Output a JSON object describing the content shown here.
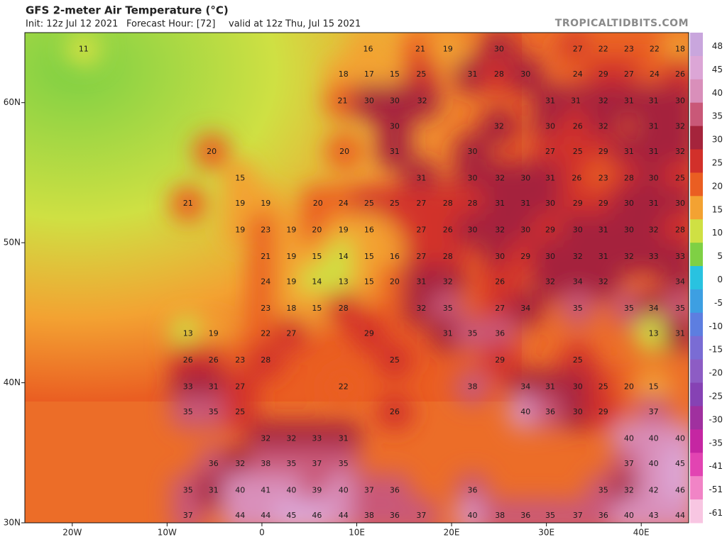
{
  "header": {
    "title": "GFS 2-meter Air Temperature (°C)",
    "init": "Init: 12z Jul 12 2021",
    "forecast_hour": "Forecast Hour: [72]",
    "valid": "valid at 12z Thu, Jul 15 2021",
    "site": "TROPICALTIDBITS.COM"
  },
  "chart_data": {
    "type": "map",
    "xlim": [
      -25,
      45
    ],
    "ylim": [
      30,
      65
    ],
    "xticks": [
      {
        "value": -20,
        "label": "20W"
      },
      {
        "value": -10,
        "label": "10W"
      },
      0,
      {
        "value": 10,
        "label": "10E"
      },
      {
        "value": 20,
        "label": "20E"
      },
      {
        "value": 30,
        "label": "30E"
      },
      {
        "value": 40,
        "label": "40E"
      }
    ],
    "yticks": [
      {
        "value": 30,
        "label": "30N"
      },
      {
        "value": 40,
        "label": "40N"
      },
      {
        "value": 50,
        "label": "50N"
      },
      {
        "value": 60,
        "label": "60N"
      }
    ],
    "colorbar": {
      "ticks": [
        48,
        45,
        40,
        35,
        30,
        25,
        20,
        15,
        10,
        5,
        0,
        -5,
        -10,
        -15,
        -20,
        -25,
        -30,
        -35,
        -41,
        -51,
        -61
      ],
      "colors": [
        "#c9a6dd",
        "#dca6d6",
        "#d98fba",
        "#c95878",
        "#a5243c",
        "#d2302a",
        "#ea5e22",
        "#f3a232",
        "#cfe043",
        "#7fd044",
        "#29c2e0",
        "#3d9fe2",
        "#5d7ee0",
        "#7a6cd4",
        "#8d5cc4",
        "#8642b4",
        "#a0309f",
        "#c526a2",
        "#e244b2",
        "#f184c6",
        "#f8c6e2"
      ]
    },
    "labels": [
      {
        "lon": -18.8,
        "lat": 63.8,
        "value": 11
      },
      {
        "lon": 11.2,
        "lat": 63.8,
        "value": 16
      },
      {
        "lon": 16.7,
        "lat": 63.8,
        "value": 21
      },
      {
        "lon": 19.6,
        "lat": 63.8,
        "value": 19
      },
      {
        "lon": 25.0,
        "lat": 63.8,
        "value": 30
      },
      {
        "lon": 33.3,
        "lat": 63.8,
        "value": 27
      },
      {
        "lon": 36.0,
        "lat": 63.8,
        "value": 22
      },
      {
        "lon": 38.7,
        "lat": 63.8,
        "value": 23
      },
      {
        "lon": 41.4,
        "lat": 63.8,
        "value": 22
      },
      {
        "lon": 44.1,
        "lat": 63.8,
        "value": 18
      },
      {
        "lon": 8.6,
        "lat": 62.0,
        "value": 18
      },
      {
        "lon": 11.3,
        "lat": 62.0,
        "value": 17
      },
      {
        "lon": 14.0,
        "lat": 62.0,
        "value": 15
      },
      {
        "lon": 16.8,
        "lat": 62.0,
        "value": 25
      },
      {
        "lon": 22.2,
        "lat": 62.0,
        "value": 31
      },
      {
        "lon": 25.0,
        "lat": 62.0,
        "value": 28
      },
      {
        "lon": 27.8,
        "lat": 62.0,
        "value": 30
      },
      {
        "lon": 33.3,
        "lat": 62.0,
        "value": 24
      },
      {
        "lon": 36.0,
        "lat": 62.0,
        "value": 29
      },
      {
        "lon": 38.7,
        "lat": 62.0,
        "value": 27
      },
      {
        "lon": 41.4,
        "lat": 62.0,
        "value": 24
      },
      {
        "lon": 44.1,
        "lat": 62.0,
        "value": 26
      },
      {
        "lon": 8.5,
        "lat": 60.1,
        "value": 21
      },
      {
        "lon": 11.3,
        "lat": 60.1,
        "value": 30
      },
      {
        "lon": 14.0,
        "lat": 60.1,
        "value": 30
      },
      {
        "lon": 16.9,
        "lat": 60.1,
        "value": 32
      },
      {
        "lon": 30.4,
        "lat": 60.1,
        "value": 31
      },
      {
        "lon": 33.1,
        "lat": 60.1,
        "value": 31
      },
      {
        "lon": 36.0,
        "lat": 60.1,
        "value": 32
      },
      {
        "lon": 38.7,
        "lat": 60.1,
        "value": 31
      },
      {
        "lon": 41.3,
        "lat": 60.1,
        "value": 31
      },
      {
        "lon": 44.1,
        "lat": 60.1,
        "value": 30
      },
      {
        "lon": 14.0,
        "lat": 58.3,
        "value": 30
      },
      {
        "lon": 25.0,
        "lat": 58.3,
        "value": 32
      },
      {
        "lon": 30.4,
        "lat": 58.3,
        "value": 30
      },
      {
        "lon": 33.3,
        "lat": 58.3,
        "value": 26
      },
      {
        "lon": 36.0,
        "lat": 58.3,
        "value": 32
      },
      {
        "lon": 41.3,
        "lat": 58.3,
        "value": 31
      },
      {
        "lon": 44.1,
        "lat": 58.3,
        "value": 32
      },
      {
        "lon": -5.3,
        "lat": 56.5,
        "value": 20
      },
      {
        "lon": 8.7,
        "lat": 56.5,
        "value": 20
      },
      {
        "lon": 14.0,
        "lat": 56.5,
        "value": 31
      },
      {
        "lon": 22.2,
        "lat": 56.5,
        "value": 30
      },
      {
        "lon": 30.4,
        "lat": 56.5,
        "value": 27
      },
      {
        "lon": 33.3,
        "lat": 56.5,
        "value": 25
      },
      {
        "lon": 36.0,
        "lat": 56.5,
        "value": 29
      },
      {
        "lon": 38.7,
        "lat": 56.5,
        "value": 31
      },
      {
        "lon": 41.3,
        "lat": 56.5,
        "value": 31
      },
      {
        "lon": 44.1,
        "lat": 56.5,
        "value": 32
      },
      {
        "lon": -2.3,
        "lat": 54.6,
        "value": 15
      },
      {
        "lon": 16.8,
        "lat": 54.6,
        "value": 31
      },
      {
        "lon": 22.2,
        "lat": 54.6,
        "value": 30
      },
      {
        "lon": 25.1,
        "lat": 54.6,
        "value": 32
      },
      {
        "lon": 27.8,
        "lat": 54.6,
        "value": 30
      },
      {
        "lon": 30.4,
        "lat": 54.6,
        "value": 31
      },
      {
        "lon": 33.2,
        "lat": 54.6,
        "value": 26
      },
      {
        "lon": 36.0,
        "lat": 54.6,
        "value": 23
      },
      {
        "lon": 38.7,
        "lat": 54.6,
        "value": 28
      },
      {
        "lon": 41.3,
        "lat": 54.6,
        "value": 30
      },
      {
        "lon": 44.1,
        "lat": 54.6,
        "value": 25
      },
      {
        "lon": -7.8,
        "lat": 52.8,
        "value": 21
      },
      {
        "lon": -2.3,
        "lat": 52.8,
        "value": 19
      },
      {
        "lon": 0.4,
        "lat": 52.8,
        "value": 19
      },
      {
        "lon": 5.9,
        "lat": 52.8,
        "value": 20
      },
      {
        "lon": 8.6,
        "lat": 52.8,
        "value": 24
      },
      {
        "lon": 11.3,
        "lat": 52.8,
        "value": 25
      },
      {
        "lon": 14.0,
        "lat": 52.8,
        "value": 25
      },
      {
        "lon": 16.8,
        "lat": 52.8,
        "value": 27
      },
      {
        "lon": 19.6,
        "lat": 52.8,
        "value": 28
      },
      {
        "lon": 22.2,
        "lat": 52.8,
        "value": 28
      },
      {
        "lon": 25.1,
        "lat": 52.8,
        "value": 31
      },
      {
        "lon": 27.8,
        "lat": 52.8,
        "value": 31
      },
      {
        "lon": 30.4,
        "lat": 52.8,
        "value": 30
      },
      {
        "lon": 33.3,
        "lat": 52.8,
        "value": 29
      },
      {
        "lon": 36.0,
        "lat": 52.8,
        "value": 29
      },
      {
        "lon": 38.7,
        "lat": 52.8,
        "value": 30
      },
      {
        "lon": 41.3,
        "lat": 52.8,
        "value": 31
      },
      {
        "lon": 44.1,
        "lat": 52.8,
        "value": 30
      },
      {
        "lon": -2.3,
        "lat": 50.9,
        "value": 19
      },
      {
        "lon": 0.4,
        "lat": 50.9,
        "value": 23
      },
      {
        "lon": 3.1,
        "lat": 50.9,
        "value": 19
      },
      {
        "lon": 5.8,
        "lat": 50.9,
        "value": 20
      },
      {
        "lon": 8.6,
        "lat": 50.9,
        "value": 19
      },
      {
        "lon": 11.3,
        "lat": 50.9,
        "value": 16
      },
      {
        "lon": 16.8,
        "lat": 50.9,
        "value": 27
      },
      {
        "lon": 19.6,
        "lat": 50.9,
        "value": 26
      },
      {
        "lon": 22.2,
        "lat": 50.9,
        "value": 30
      },
      {
        "lon": 25.1,
        "lat": 50.9,
        "value": 32
      },
      {
        "lon": 27.8,
        "lat": 50.9,
        "value": 30
      },
      {
        "lon": 30.4,
        "lat": 50.9,
        "value": 29
      },
      {
        "lon": 33.3,
        "lat": 50.9,
        "value": 30
      },
      {
        "lon": 36.0,
        "lat": 50.9,
        "value": 31
      },
      {
        "lon": 38.7,
        "lat": 50.9,
        "value": 30
      },
      {
        "lon": 41.3,
        "lat": 50.9,
        "value": 32
      },
      {
        "lon": 44.1,
        "lat": 50.9,
        "value": 28
      },
      {
        "lon": 0.4,
        "lat": 49.0,
        "value": 21
      },
      {
        "lon": 3.1,
        "lat": 49.0,
        "value": 19
      },
      {
        "lon": 5.8,
        "lat": 49.0,
        "value": 15
      },
      {
        "lon": 8.6,
        "lat": 49.0,
        "value": 14
      },
      {
        "lon": 11.3,
        "lat": 49.0,
        "value": 15
      },
      {
        "lon": 14.0,
        "lat": 49.0,
        "value": 16
      },
      {
        "lon": 16.8,
        "lat": 49.0,
        "value": 27
      },
      {
        "lon": 19.6,
        "lat": 49.0,
        "value": 28
      },
      {
        "lon": 25.1,
        "lat": 49.0,
        "value": 30
      },
      {
        "lon": 27.8,
        "lat": 49.0,
        "value": 29
      },
      {
        "lon": 30.4,
        "lat": 49.0,
        "value": 30
      },
      {
        "lon": 33.3,
        "lat": 49.0,
        "value": 32
      },
      {
        "lon": 36.0,
        "lat": 49.0,
        "value": 31
      },
      {
        "lon": 38.7,
        "lat": 49.0,
        "value": 32
      },
      {
        "lon": 41.3,
        "lat": 49.0,
        "value": 33
      },
      {
        "lon": 44.1,
        "lat": 49.0,
        "value": 33
      },
      {
        "lon": 0.4,
        "lat": 47.2,
        "value": 24
      },
      {
        "lon": 3.1,
        "lat": 47.2,
        "value": 19
      },
      {
        "lon": 5.8,
        "lat": 47.2,
        "value": 14
      },
      {
        "lon": 8.6,
        "lat": 47.2,
        "value": 13
      },
      {
        "lon": 11.3,
        "lat": 47.2,
        "value": 15
      },
      {
        "lon": 14.0,
        "lat": 47.2,
        "value": 20
      },
      {
        "lon": 16.8,
        "lat": 47.2,
        "value": 31
      },
      {
        "lon": 19.6,
        "lat": 47.2,
        "value": 32
      },
      {
        "lon": 25.1,
        "lat": 47.2,
        "value": 26
      },
      {
        "lon": 30.4,
        "lat": 47.2,
        "value": 32
      },
      {
        "lon": 33.3,
        "lat": 47.2,
        "value": 34
      },
      {
        "lon": 36.0,
        "lat": 47.2,
        "value": 32
      },
      {
        "lon": 44.1,
        "lat": 47.2,
        "value": 34
      },
      {
        "lon": 0.4,
        "lat": 45.3,
        "value": 23
      },
      {
        "lon": 3.1,
        "lat": 45.3,
        "value": 18
      },
      {
        "lon": 5.8,
        "lat": 45.3,
        "value": 15
      },
      {
        "lon": 8.6,
        "lat": 45.3,
        "value": 28
      },
      {
        "lon": 16.8,
        "lat": 45.3,
        "value": 32
      },
      {
        "lon": 19.6,
        "lat": 45.3,
        "value": 35
      },
      {
        "lon": 25.1,
        "lat": 45.3,
        "value": 27
      },
      {
        "lon": 27.8,
        "lat": 45.3,
        "value": 34
      },
      {
        "lon": 33.3,
        "lat": 45.3,
        "value": 35
      },
      {
        "lon": 38.7,
        "lat": 45.3,
        "value": 35
      },
      {
        "lon": 41.3,
        "lat": 45.3,
        "value": 34
      },
      {
        "lon": 44.1,
        "lat": 45.3,
        "value": 35
      },
      {
        "lon": -7.8,
        "lat": 43.5,
        "value": 13
      },
      {
        "lon": -5.1,
        "lat": 43.5,
        "value": 19
      },
      {
        "lon": 0.4,
        "lat": 43.5,
        "value": 22
      },
      {
        "lon": 3.1,
        "lat": 43.5,
        "value": 27
      },
      {
        "lon": 11.3,
        "lat": 43.5,
        "value": 29
      },
      {
        "lon": 19.6,
        "lat": 43.5,
        "value": 31
      },
      {
        "lon": 22.2,
        "lat": 43.5,
        "value": 35
      },
      {
        "lon": 25.1,
        "lat": 43.5,
        "value": 36
      },
      {
        "lon": 41.3,
        "lat": 43.5,
        "value": 13
      },
      {
        "lon": 44.1,
        "lat": 43.5,
        "value": 31
      },
      {
        "lon": -7.8,
        "lat": 41.6,
        "value": 26
      },
      {
        "lon": -5.1,
        "lat": 41.6,
        "value": 26
      },
      {
        "lon": -2.3,
        "lat": 41.6,
        "value": 23
      },
      {
        "lon": 0.4,
        "lat": 41.6,
        "value": 28
      },
      {
        "lon": 14.0,
        "lat": 41.6,
        "value": 25
      },
      {
        "lon": 25.1,
        "lat": 41.6,
        "value": 29
      },
      {
        "lon": 33.3,
        "lat": 41.6,
        "value": 25
      },
      {
        "lon": -7.8,
        "lat": 39.7,
        "value": 33
      },
      {
        "lon": -5.1,
        "lat": 39.7,
        "value": 31
      },
      {
        "lon": -2.3,
        "lat": 39.7,
        "value": 27
      },
      {
        "lon": 8.6,
        "lat": 39.7,
        "value": 22
      },
      {
        "lon": 22.2,
        "lat": 39.7,
        "value": 38
      },
      {
        "lon": 27.8,
        "lat": 39.7,
        "value": 34
      },
      {
        "lon": 30.4,
        "lat": 39.7,
        "value": 31
      },
      {
        "lon": 33.3,
        "lat": 39.7,
        "value": 30
      },
      {
        "lon": 36.0,
        "lat": 39.7,
        "value": 25
      },
      {
        "lon": 38.7,
        "lat": 39.7,
        "value": 20
      },
      {
        "lon": 41.3,
        "lat": 39.7,
        "value": 15
      },
      {
        "lon": -7.8,
        "lat": 37.9,
        "value": 35
      },
      {
        "lon": -5.1,
        "lat": 37.9,
        "value": 35
      },
      {
        "lon": -2.3,
        "lat": 37.9,
        "value": 25
      },
      {
        "lon": 14.0,
        "lat": 37.9,
        "value": 26
      },
      {
        "lon": 27.8,
        "lat": 37.9,
        "value": 40
      },
      {
        "lon": 30.4,
        "lat": 37.9,
        "value": 36
      },
      {
        "lon": 33.3,
        "lat": 37.9,
        "value": 30
      },
      {
        "lon": 36.0,
        "lat": 37.9,
        "value": 29
      },
      {
        "lon": 41.3,
        "lat": 37.9,
        "value": 37
      },
      {
        "lon": 0.4,
        "lat": 36.0,
        "value": 32
      },
      {
        "lon": 3.1,
        "lat": 36.0,
        "value": 32
      },
      {
        "lon": 5.8,
        "lat": 36.0,
        "value": 33
      },
      {
        "lon": 8.6,
        "lat": 36.0,
        "value": 31
      },
      {
        "lon": 38.7,
        "lat": 36.0,
        "value": 40
      },
      {
        "lon": 41.3,
        "lat": 36.0,
        "value": 40
      },
      {
        "lon": 44.1,
        "lat": 36.0,
        "value": 40
      },
      {
        "lon": -5.1,
        "lat": 34.2,
        "value": 36
      },
      {
        "lon": -2.3,
        "lat": 34.2,
        "value": 32
      },
      {
        "lon": 0.4,
        "lat": 34.2,
        "value": 38
      },
      {
        "lon": 3.1,
        "lat": 34.2,
        "value": 35
      },
      {
        "lon": 5.8,
        "lat": 34.2,
        "value": 37
      },
      {
        "lon": 8.6,
        "lat": 34.2,
        "value": 35
      },
      {
        "lon": 38.7,
        "lat": 34.2,
        "value": 37
      },
      {
        "lon": 41.3,
        "lat": 34.2,
        "value": 40
      },
      {
        "lon": 44.1,
        "lat": 34.2,
        "value": 45
      },
      {
        "lon": -7.8,
        "lat": 32.3,
        "value": 35
      },
      {
        "lon": -5.1,
        "lat": 32.3,
        "value": 31
      },
      {
        "lon": -2.3,
        "lat": 32.3,
        "value": 40
      },
      {
        "lon": 0.4,
        "lat": 32.3,
        "value": 41
      },
      {
        "lon": 3.1,
        "lat": 32.3,
        "value": 40
      },
      {
        "lon": 5.8,
        "lat": 32.3,
        "value": 39
      },
      {
        "lon": 8.6,
        "lat": 32.3,
        "value": 40
      },
      {
        "lon": 11.3,
        "lat": 32.3,
        "value": 37
      },
      {
        "lon": 14.0,
        "lat": 32.3,
        "value": 36
      },
      {
        "lon": 22.2,
        "lat": 32.3,
        "value": 36
      },
      {
        "lon": 36.0,
        "lat": 32.3,
        "value": 35
      },
      {
        "lon": 38.7,
        "lat": 32.3,
        "value": 32
      },
      {
        "lon": 41.3,
        "lat": 32.3,
        "value": 42
      },
      {
        "lon": 44.1,
        "lat": 32.3,
        "value": 46
      },
      {
        "lon": -7.8,
        "lat": 30.5,
        "value": 37
      },
      {
        "lon": -2.3,
        "lat": 30.5,
        "value": 44
      },
      {
        "lon": 0.4,
        "lat": 30.5,
        "value": 44
      },
      {
        "lon": 3.1,
        "lat": 30.5,
        "value": 45
      },
      {
        "lon": 5.8,
        "lat": 30.5,
        "value": 46
      },
      {
        "lon": 8.6,
        "lat": 30.5,
        "value": 44
      },
      {
        "lon": 11.3,
        "lat": 30.5,
        "value": 38
      },
      {
        "lon": 14.0,
        "lat": 30.5,
        "value": 36
      },
      {
        "lon": 16.8,
        "lat": 30.5,
        "value": 37
      },
      {
        "lon": 22.2,
        "lat": 30.5,
        "value": 40
      },
      {
        "lon": 25.1,
        "lat": 30.5,
        "value": 38
      },
      {
        "lon": 27.8,
        "lat": 30.5,
        "value": 36
      },
      {
        "lon": 30.4,
        "lat": 30.5,
        "value": 35
      },
      {
        "lon": 33.3,
        "lat": 30.5,
        "value": 37
      },
      {
        "lon": 36.0,
        "lat": 30.5,
        "value": 36
      },
      {
        "lon": 38.7,
        "lat": 30.5,
        "value": 40
      },
      {
        "lon": 41.3,
        "lat": 30.5,
        "value": 43
      },
      {
        "lon": 44.1,
        "lat": 30.5,
        "value": 44
      }
    ]
  }
}
